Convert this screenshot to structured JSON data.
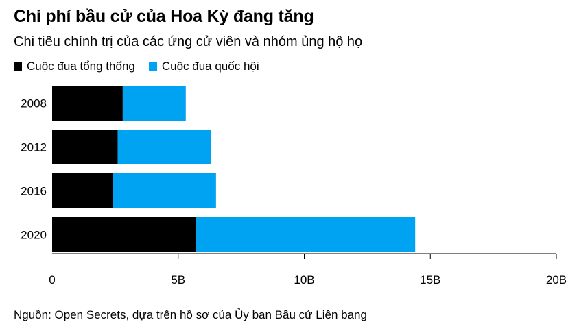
{
  "header": {
    "title": "Chi phí bầu cử của Hoa Kỳ đang tăng",
    "subtitle": "Chi tiêu chính trị của các ứng cử viên và nhóm ủng hộ họ"
  },
  "footer": {
    "source": "Nguồn: Open Secrets, dựa trên hồ sơ của Ủy ban Bầu cử Liên bang"
  },
  "colors": {
    "presidential": "#000000",
    "congressional": "#00A3F2"
  },
  "chart_data": {
    "type": "bar",
    "orientation": "horizontal",
    "stacked": true,
    "title": "Chi phí bầu cử của Hoa Kỳ đang tăng",
    "subtitle": "Chi tiêu chính trị của các ứng cử viên và nhóm ủng hộ họ",
    "categories": [
      "2008",
      "2012",
      "2016",
      "2020"
    ],
    "series": [
      {
        "name": "Cuộc đua tổng thống",
        "values": [
          2.8,
          2.6,
          2.4,
          5.7
        ]
      },
      {
        "name": "Cuộc đua quốc hội",
        "values": [
          2.5,
          3.7,
          4.1,
          8.7
        ]
      }
    ],
    "xlim": [
      0,
      20
    ],
    "xticks": [
      0,
      5,
      10,
      15,
      20
    ],
    "xtick_labels": [
      "0",
      "5B",
      "10B",
      "15B",
      "20B"
    ],
    "legend_position": "top-left",
    "grid": false
  }
}
